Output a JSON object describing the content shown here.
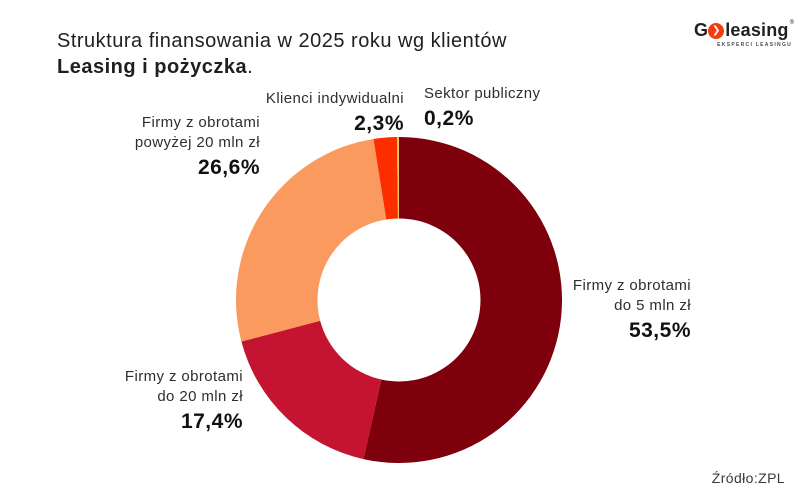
{
  "header": {
    "title_line1": "Struktura finansowania w 2025 roku wg klientów",
    "title_line2_bold": "Leasing i pożyczka",
    "title_line2_suffix": "."
  },
  "logo": {
    "prefix": "G",
    "chevron": "❯",
    "suffix": "leasing",
    "registered_mark": "®",
    "tagline": "EKSPERCI LEASINGU",
    "accent_color": "#F63A0F",
    "text_color": "#231F20"
  },
  "footer": {
    "source": "Źródło:ZPL"
  },
  "chart_data": {
    "type": "pie",
    "subtype": "donut",
    "title": "Struktura finansowania w 2025 roku wg klientów — Leasing i pożyczka",
    "start_angle_deg": 0,
    "direction": "clockwise",
    "inner_radius_ratio": 0.5,
    "hole_color": "#FFFFFF",
    "slices": [
      {
        "name": "Firmy z obrotami do 5 mln zł",
        "lines": [
          "Firmy z obrotami",
          "do 5 mln zł"
        ],
        "value": 53.5,
        "pct_label": "53,5%",
        "color": "#7D000C"
      },
      {
        "name": "Firmy z obrotami do 20 mln zł",
        "lines": [
          "Firmy z obrotami",
          "do 20 mln zł"
        ],
        "value": 17.4,
        "pct_label": "17,4%",
        "color": "#C41431"
      },
      {
        "name": "Firmy z obrotami powyżej 20 mln zł",
        "lines": [
          "Firmy z obrotami",
          "powyżej 20 mln zł"
        ],
        "value": 26.6,
        "pct_label": "26,6%",
        "color": "#FA9A5F"
      },
      {
        "name": "Klienci indywidualni",
        "lines": [
          "Klienci indywidualni"
        ],
        "value": 2.3,
        "pct_label": "2,3%",
        "color": "#FE2D00"
      },
      {
        "name": "Sektor publiczny",
        "lines": [
          "Sektor publiczny"
        ],
        "value": 0.2,
        "pct_label": "0,2%",
        "color": "#F0C75B"
      }
    ]
  }
}
